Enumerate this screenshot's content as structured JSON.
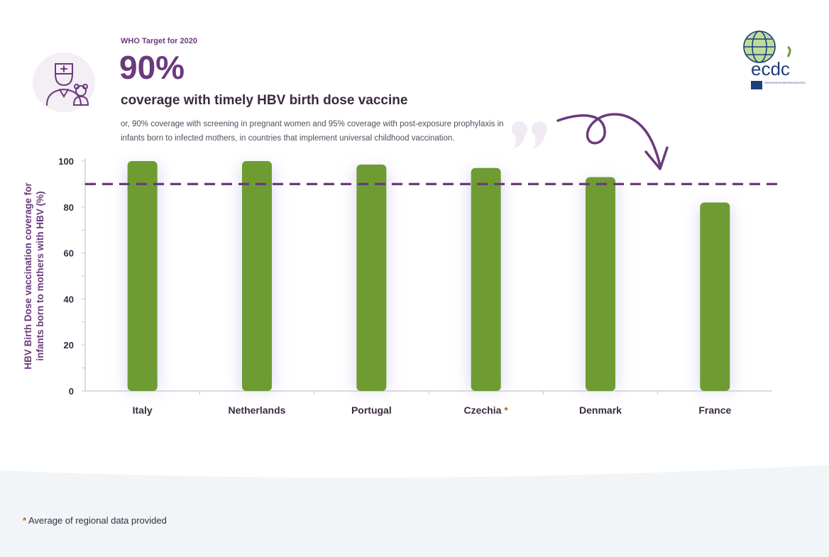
{
  "header": {
    "kicker": "WHO Target for 2020",
    "big_value": "90%",
    "headline": "coverage with timely HBV birth dose vaccine",
    "subtext": "or, 90% coverage with screening in pregnant women and 95% coverage with post-exposure prophylaxis in infants born to infected mothers, in countries that implement universal childhood vaccination."
  },
  "logo": {
    "text": "ecdc",
    "subtitle": "EUROPEAN CENTRE FOR DISEASE PREVENTION AND CONTROL"
  },
  "chart_data": {
    "type": "bar",
    "title": "",
    "xlabel": "",
    "ylabel": "HBV Birth Dose vaccination coverage for infants born to mothers with HBV (%)",
    "ylabel_lines": [
      "HBV Birth Dose vaccination coverage for",
      "infants born to mothers with HBV (%)"
    ],
    "categories": [
      "Italy",
      "Netherlands",
      "Portugal",
      "Czechia",
      "Denmark",
      "France"
    ],
    "marked": [
      false,
      false,
      false,
      true,
      false,
      false
    ],
    "values": [
      100,
      100,
      98.5,
      97,
      93,
      82
    ],
    "ylim": [
      0,
      100
    ],
    "yticks": [
      0,
      20,
      40,
      60,
      80,
      100
    ],
    "target": 90,
    "bar_color": "#6e9c33",
    "target_color": "#6b3a7d",
    "axis_color": "#c8c0d0"
  },
  "footnote": {
    "star": "*",
    "text": "Average of regional data provided"
  },
  "colors": {
    "purple": "#6b3a7d",
    "star": "#b8621f",
    "band": "#f1f5f8"
  }
}
